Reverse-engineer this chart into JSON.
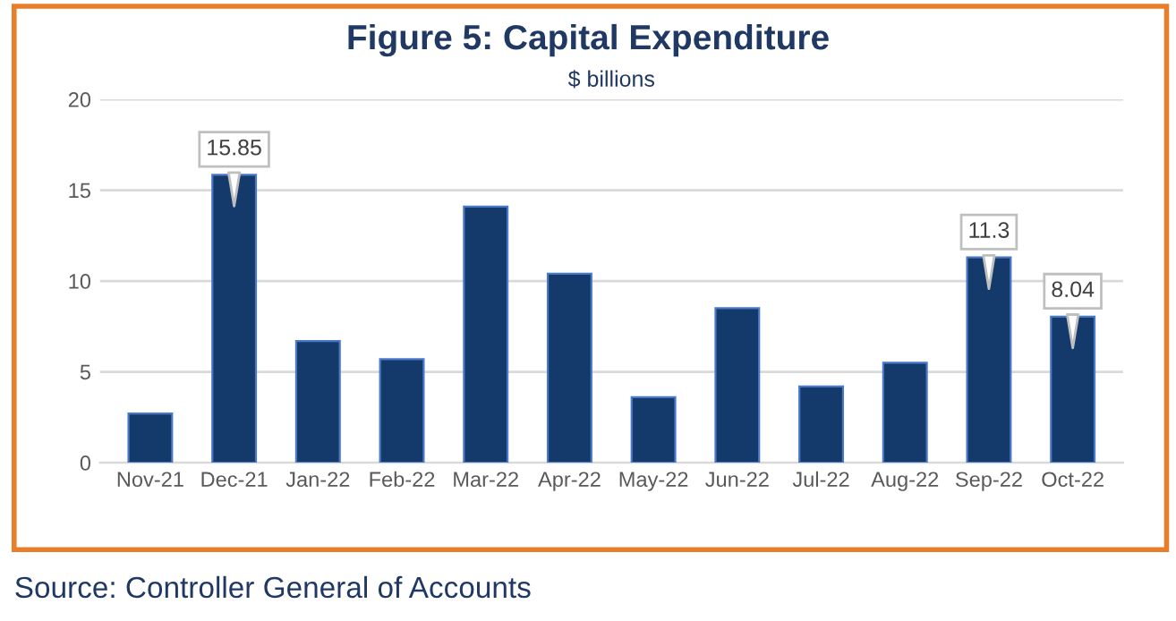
{
  "chart_data": {
    "type": "bar",
    "title": "Figure 5: Capital Expenditure",
    "subtitle": "$ billions",
    "categories": [
      "Nov-21",
      "Dec-21",
      "Jan-22",
      "Feb-22",
      "Mar-22",
      "Apr-22",
      "May-22",
      "Jun-22",
      "Jul-22",
      "Aug-22",
      "Sep-22",
      "Oct-22"
    ],
    "values": [
      2.7,
      15.85,
      6.7,
      5.7,
      14.1,
      10.4,
      3.6,
      8.5,
      4.2,
      5.5,
      11.3,
      8.04
    ],
    "value_labels": [
      null,
      "15.85",
      null,
      null,
      null,
      null,
      null,
      null,
      null,
      null,
      "11.3",
      "8.04"
    ],
    "color": "#143a6b",
    "ylim": [
      0,
      20
    ],
    "yticks": [
      0,
      5,
      10,
      15,
      20
    ],
    "grid": "y",
    "legend": false,
    "annotations": [
      "Source: Controller General of Accounts"
    ]
  }
}
